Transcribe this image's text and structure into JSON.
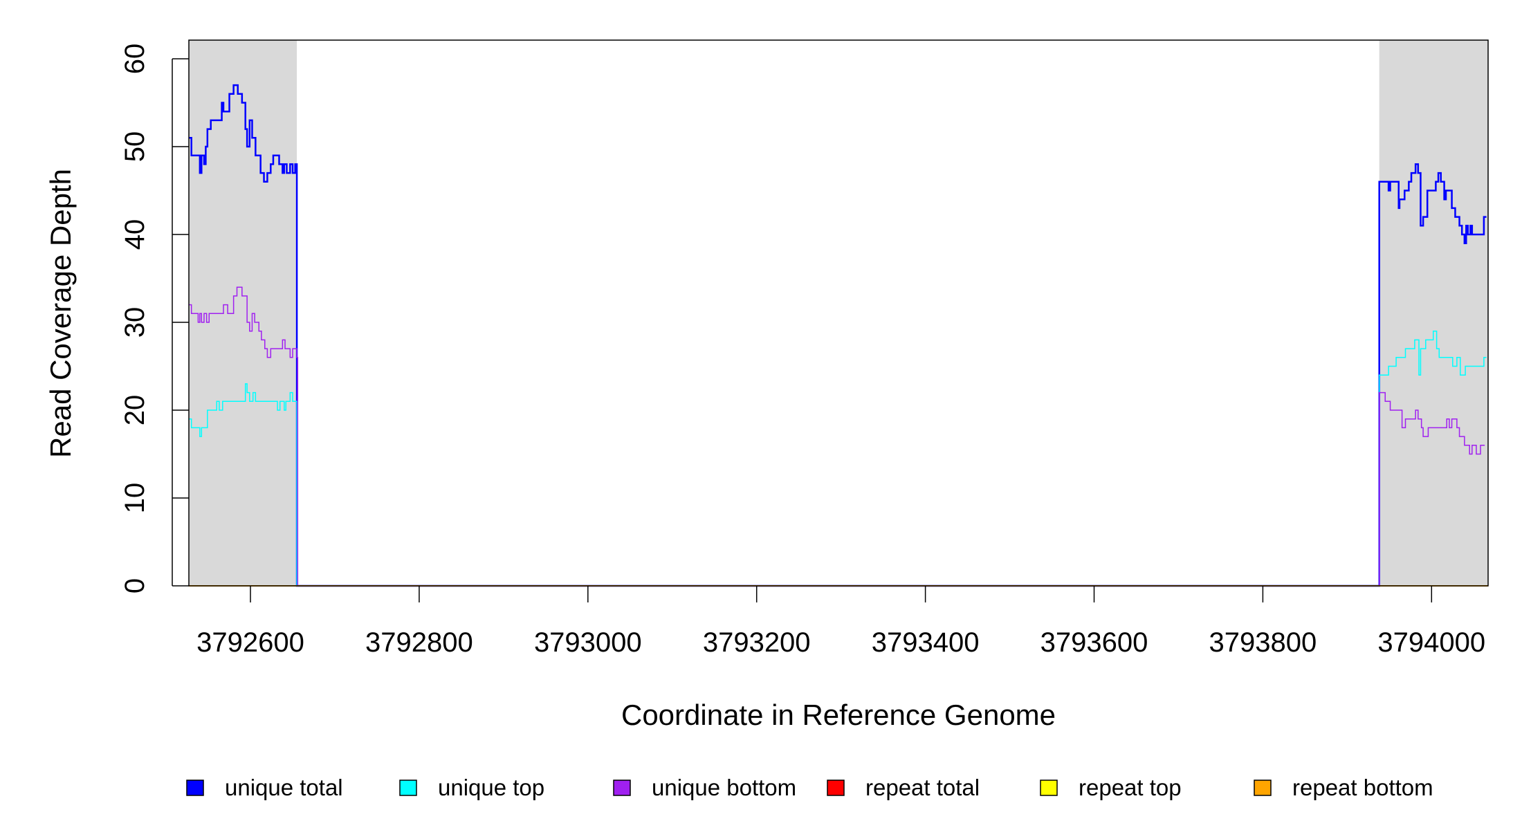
{
  "chart_data": {
    "type": "line",
    "step": true,
    "xlabel": "Coordinate in Reference Genome",
    "ylabel": "Read Coverage Depth",
    "xlim": [
      3792527,
      3794067
    ],
    "ylim": [
      0,
      62
    ],
    "xticks": [
      3792600,
      3792800,
      3793000,
      3793200,
      3793400,
      3793600,
      3793800,
      3794000
    ],
    "yticks": [
      0,
      10,
      20,
      30,
      40,
      50,
      60
    ],
    "shaded_regions": [
      [
        3792527,
        3792655
      ],
      [
        3793938,
        3794067
      ]
    ],
    "shade_color": "#d9d9d9",
    "legend": [
      {
        "label": "unique total",
        "color": "#0000ff"
      },
      {
        "label": "unique top",
        "color": "#00ffff"
      },
      {
        "label": "unique bottom",
        "color": "#a020f0"
      },
      {
        "label": "repeat total",
        "color": "#ff0000"
      },
      {
        "label": "repeat top",
        "color": "#ffff00"
      },
      {
        "label": "repeat bottom",
        "color": "#ffa500"
      }
    ],
    "series": [
      {
        "name": "unique total",
        "color": "#0000ff",
        "width": 2.5,
        "x": [
          3792527,
          3792530,
          3792534,
          3792540,
          3792542,
          3792545,
          3792547,
          3792549,
          3792553,
          3792566,
          3792568,
          3792571,
          3792575,
          3792580,
          3792585,
          3792590,
          3792594,
          3792596,
          3792599,
          3792602,
          3792606,
          3792609,
          3792612,
          3792616,
          3792620,
          3792624,
          3792627,
          3792634,
          3792638,
          3792640,
          3792643,
          3792647,
          3792650,
          3792653,
          3792655,
          3792656,
          3793938,
          3793939,
          3793949,
          3793951,
          3793961,
          3793962,
          3793964,
          3793968,
          3793973,
          3793976,
          3793981,
          3793984,
          3793987,
          3793990,
          3793995,
          3793997,
          3794005,
          3794008,
          3794011,
          3794015,
          3794017,
          3794021,
          3794024,
          3794028,
          3794033,
          3794036,
          3794039,
          3794041,
          3794043,
          3794046,
          3794048,
          3794053,
          3794056,
          3794062,
          3794065
        ],
        "y": [
          51,
          49,
          49,
          47,
          49,
          48,
          50,
          52,
          53,
          55,
          54,
          54,
          56,
          57,
          56,
          55,
          52,
          50,
          53,
          51,
          49,
          49,
          47,
          46,
          47,
          48,
          49,
          48,
          47,
          48,
          47,
          48,
          47,
          48,
          0,
          0,
          46,
          46,
          45,
          46,
          43,
          44,
          44,
          45,
          46,
          47,
          48,
          47,
          41,
          42,
          45,
          45,
          46,
          47,
          46,
          44,
          45,
          45,
          43,
          42,
          41,
          40,
          39,
          41,
          40,
          41,
          40,
          40,
          40,
          42,
          42
        ]
      },
      {
        "name": "unique top",
        "color": "#00ffff",
        "width": 1.5,
        "x": [
          3792527,
          3792530,
          3792534,
          3792540,
          3792542,
          3792545,
          3792549,
          3792560,
          3792563,
          3792567,
          3792594,
          3792596,
          3792599,
          3792603,
          3792606,
          3792611,
          3792632,
          3792635,
          3792640,
          3792642,
          3792645,
          3792647,
          3792650,
          3792655,
          3792656,
          3793938,
          3793940,
          3793949,
          3793953,
          3793958,
          3793965,
          3793969,
          3793980,
          3793985,
          3793987,
          3793989,
          3793993,
          3794002,
          3794006,
          3794009,
          3794012,
          3794025,
          3794030,
          3794034,
          3794040,
          3794062,
          3794065
        ],
        "y": [
          19,
          18,
          18,
          17,
          18,
          18,
          20,
          21,
          20,
          21,
          23,
          22,
          21,
          22,
          21,
          21,
          20,
          21,
          20,
          21,
          21,
          22,
          21,
          0,
          0,
          24,
          24,
          25,
          25,
          26,
          26,
          27,
          28,
          24,
          27,
          27,
          28,
          29,
          27,
          26,
          26,
          25,
          26,
          24,
          25,
          26,
          26
        ],
        "_note": ""
      },
      {
        "name": "unique bottom",
        "color": "#a020f0",
        "width": 1.5,
        "x": [
          3792527,
          3792530,
          3792538,
          3792540,
          3792542,
          3792545,
          3792548,
          3792551,
          3792556,
          3792561,
          3792568,
          3792573,
          3792580,
          3792584,
          3792590,
          3792596,
          3792599,
          3792602,
          3792605,
          3792610,
          3792613,
          3792617,
          3792620,
          3792624,
          3792635,
          3792638,
          3792641,
          3792647,
          3792650,
          3792655,
          3792656,
          3793938,
          3793945,
          3793951,
          3793965,
          3793969,
          3793981,
          3793984,
          3793988,
          3793990,
          3793996,
          3794018,
          3794021,
          3794024,
          3794030,
          3794033,
          3794039,
          3794045,
          3794048,
          3794053,
          3794058,
          3794063
        ],
        "y": [
          32,
          31,
          30,
          31,
          30,
          31,
          30,
          31,
          31,
          31,
          32,
          31,
          33,
          34,
          33,
          30,
          29,
          31,
          30,
          29,
          28,
          27,
          26,
          27,
          27,
          28,
          27,
          26,
          27,
          26,
          0,
          22,
          21,
          20,
          18,
          19,
          20,
          19,
          18,
          17,
          18,
          19,
          18,
          19,
          18,
          17,
          16,
          15,
          16,
          15,
          16,
          16
        ]
      },
      {
        "name": "repeat total",
        "color": "#ff0000",
        "width": 1.5,
        "x": [
          3792527,
          3794067
        ],
        "y": [
          0,
          0
        ]
      },
      {
        "name": "repeat top",
        "color": "#ffff00",
        "width": 1.5,
        "x": [
          3792527,
          3794067
        ],
        "y": [
          0,
          0
        ]
      },
      {
        "name": "repeat bottom",
        "color": "#ffa500",
        "width": 2,
        "x": [
          3792527,
          3794067
        ],
        "y": [
          0,
          0
        ]
      }
    ]
  }
}
